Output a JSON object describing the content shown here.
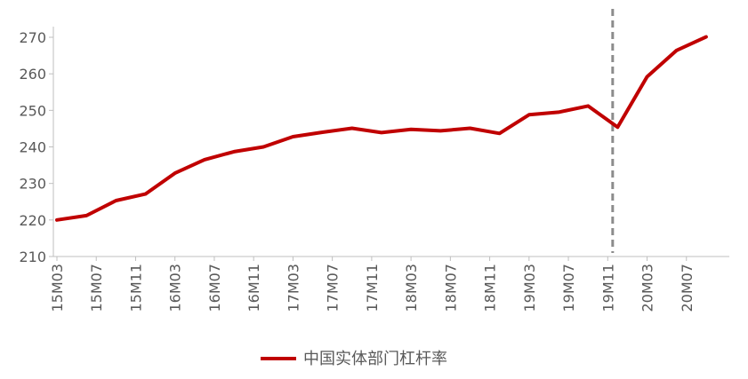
{
  "chart_data": {
    "type": "line",
    "title": "",
    "xlabel": "",
    "ylabel": "",
    "ylim": [
      210,
      270
    ],
    "y_ticks": [
      210,
      220,
      230,
      240,
      250,
      260,
      270
    ],
    "x_tick_labels": [
      "15M03",
      "15M07",
      "15M11",
      "16M03",
      "16M07",
      "16M11",
      "17M03",
      "17M07",
      "17M11",
      "18M03",
      "18M07",
      "18M11",
      "19M03",
      "19M07",
      "19M11",
      "20M03",
      "20M07"
    ],
    "legend_position": "bottom",
    "grid": false,
    "reference_line_after": "19M11",
    "series": [
      {
        "name": "中国实体部门杠杆率",
        "color": "#C00000",
        "x": [
          "15M03",
          "15M06",
          "15M09",
          "15M12",
          "16M03",
          "16M06",
          "16M09",
          "16M12",
          "17M03",
          "17M06",
          "17M09",
          "17M12",
          "18M03",
          "18M06",
          "18M09",
          "18M12",
          "19M03",
          "19M06",
          "19M09",
          "19M12",
          "20M03",
          "20M06",
          "20M09"
        ],
        "values": [
          220.0,
          221.2,
          225.3,
          227.1,
          232.8,
          236.5,
          238.7,
          240.0,
          242.8,
          244.0,
          245.1,
          243.9,
          244.8,
          244.4,
          245.1,
          243.7,
          248.8,
          249.5,
          251.2,
          245.4,
          259.2,
          266.4,
          270.1
        ]
      }
    ]
  }
}
